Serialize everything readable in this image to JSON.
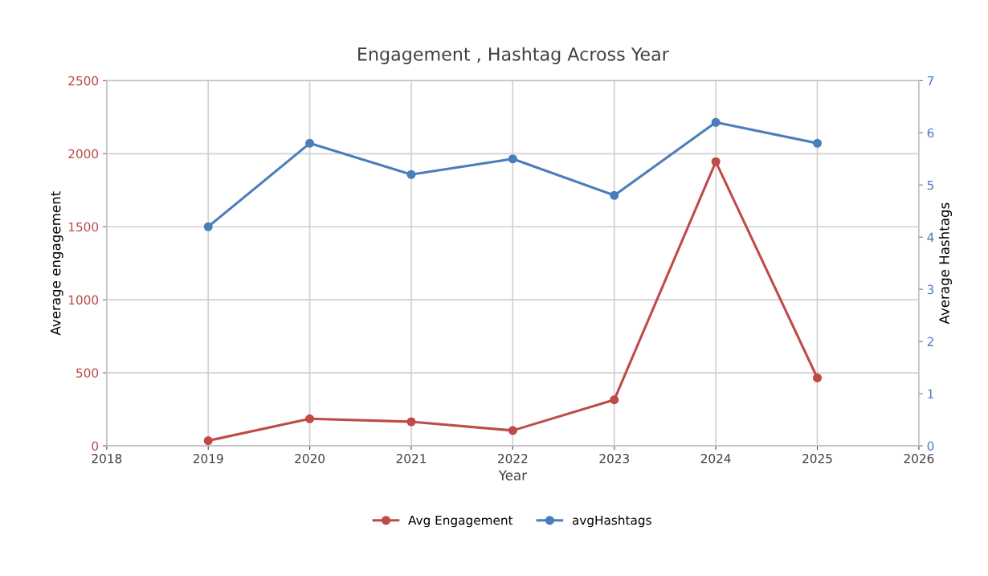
{
  "chart_data": {
    "type": "line",
    "title": "Engagement , Hashtag Across Year",
    "xlabel": "Year",
    "ylabel": "Average engagement",
    "y2label": "Average Hashtags",
    "x": [
      2019,
      2020,
      2021,
      2022,
      2023,
      2024,
      2025
    ],
    "series": [
      {
        "name": "Avg Engagement",
        "color": "#be4b48",
        "values": [
          35,
          185,
          165,
          105,
          315,
          1945,
          465
        ]
      },
      {
        "name": "avgHashtags",
        "color": "#4a7ebb",
        "axis": "y2",
        "values": [
          4.2,
          5.8,
          5.2,
          5.5,
          4.8,
          6.2,
          5.8
        ]
      }
    ],
    "xlim": [
      2018,
      2026
    ],
    "xticks": [
      2018,
      2019,
      2020,
      2021,
      2022,
      2023,
      2024,
      2025,
      2026
    ],
    "ylim": [
      0,
      2500
    ],
    "yticks": [
      0,
      500,
      1000,
      1500,
      2000,
      2500
    ],
    "y2lim": [
      0,
      7
    ],
    "y2ticks": [
      0,
      1,
      2,
      3,
      4,
      5,
      6,
      7
    ],
    "grid": true,
    "legend": "bottom",
    "marker": "circle",
    "line_style": "solid"
  }
}
